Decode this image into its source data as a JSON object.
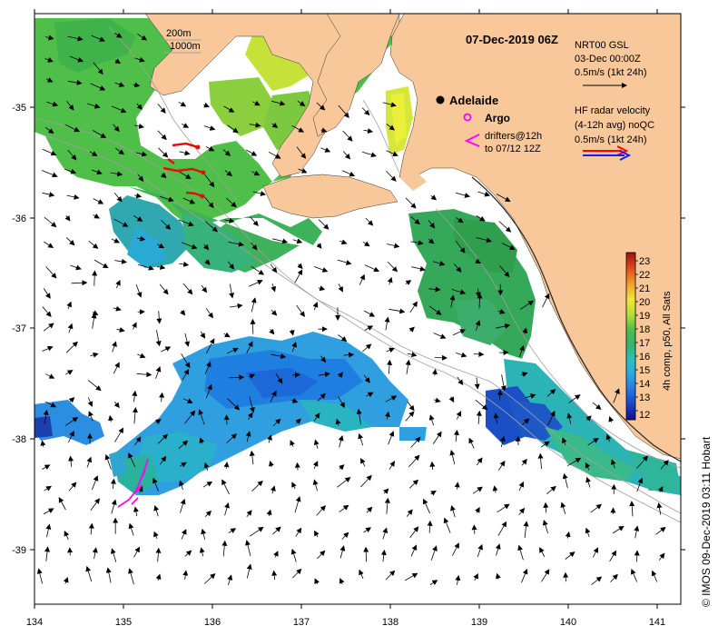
{
  "title": "07-Dec-2019 06Z",
  "x_ticks": [
    "134",
    "135",
    "136",
    "137",
    "138",
    "139",
    "140",
    "141"
  ],
  "y_ticks": [
    "-35",
    "-36",
    "-37",
    "-38",
    "-39"
  ],
  "scale_legend": {
    "depth_1": "200m",
    "depth_2": "1000m"
  },
  "gsl_legend": {
    "line1": "NRT00 GSL",
    "line2": "03-Dec 00:00Z",
    "line3": "0.5m/s (1kt 24h)"
  },
  "hf_legend": {
    "line1": "HF radar velocity",
    "line2": "(4-12h avg) noQC",
    "line3": "0.5m/s (1kt 24h)"
  },
  "places": {
    "adelaide": "Adelaide",
    "argo": "Argo"
  },
  "drifters": {
    "line1": "drifters@12h",
    "line2": "to 07/12 12Z"
  },
  "colorbar": {
    "ticks": [
      "23",
      "22",
      "21",
      "20",
      "19",
      "18",
      "17",
      "16",
      "15",
      "14",
      "13",
      "12"
    ],
    "label": "4h comp, p50, All Sats"
  },
  "credit": "© IMOS 09-Dec-2019 03:11 Hobart",
  "colors": {
    "land": "#f8c89a",
    "ocean": "#ffffff",
    "drifter": "#ff00ff",
    "hf_red": "#ff0000",
    "hf_blue": "#1a1aff"
  }
}
